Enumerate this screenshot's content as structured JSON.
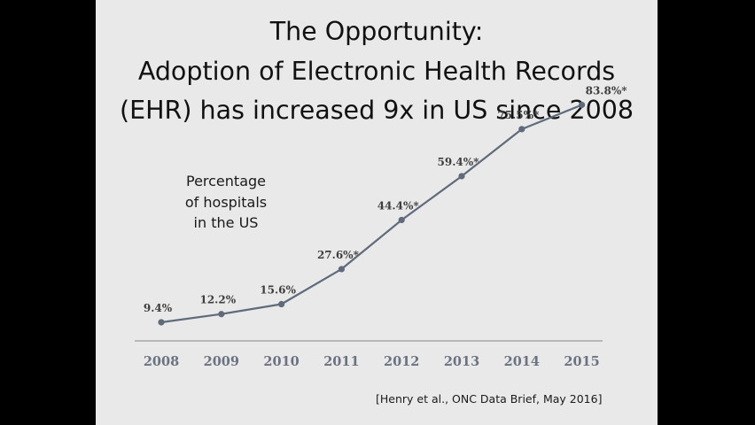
{
  "slide": {
    "title_lines": [
      "The Opportunity:",
      "Adoption of Electronic Health Records",
      "(EHR) has increased 9x in US since 2008"
    ],
    "subtitle_lines": [
      "Percentage",
      "of hospitals",
      "in the US"
    ],
    "citation": "[Henry et al., ONC Data Brief, May 2016]"
  },
  "colors": {
    "background": "#000000",
    "slide": "#e9e9e9",
    "line": "#5f6b7a",
    "tick_label": "#6b7380",
    "data_label": "#3e3e3e",
    "axis": "#9a9a9a"
  },
  "chart_data": {
    "type": "line",
    "categories": [
      "2008",
      "2009",
      "2010",
      "2011",
      "2012",
      "2013",
      "2014",
      "2015"
    ],
    "series": [
      {
        "values": [
          9.4,
          12.2,
          15.6,
          27.6,
          44.4,
          59.4,
          75.5,
          83.8
        ],
        "labels": [
          "9.4%",
          "12.2%",
          "15.6%",
          "27.6%*",
          "44.4%*",
          "59.4%*",
          "75.5%*",
          "83.8%*"
        ]
      }
    ],
    "ylim": [
      0,
      100
    ],
    "grid": false,
    "legend": "none",
    "xlabel": "",
    "ylabel": ""
  }
}
